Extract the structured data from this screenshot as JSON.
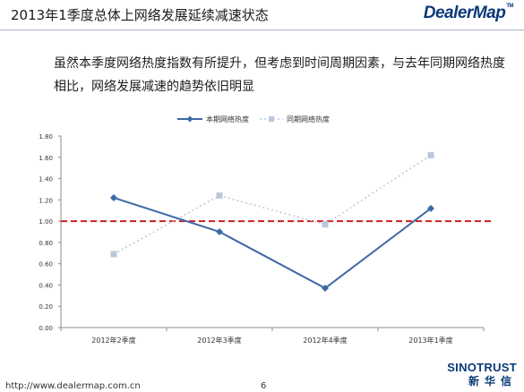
{
  "header": {
    "title": "2013年1季度总体上网络发展延续减速状态",
    "logo": "DealerMap",
    "logo_tm": "TM"
  },
  "body_text": "虽然本季度网络热度指数有所提升，但考虑到时间周期因素，与去年同期网络热度相比，网络发展减速的趋势依旧明显",
  "footer": {
    "url": "http://www.dealermap.com.cn",
    "page": "6",
    "brand_en": "SINOTRUST",
    "brand_cn": "新华信"
  },
  "colors": {
    "current": "#3d6aa6",
    "last_year": "#b9c8dc",
    "reference": "#cc1f1f",
    "axis": "#8c8c8c"
  },
  "chart_data": {
    "type": "line",
    "categories": [
      "2012年2季度",
      "2012年3季度",
      "2012年4季度",
      "2013年1季度"
    ],
    "series": [
      {
        "name": "本期网络热度",
        "values": [
          1.22,
          0.9,
          0.37,
          1.12
        ],
        "style": "solid",
        "marker": "diamond"
      },
      {
        "name": "同期网络热度",
        "values": [
          0.69,
          1.24,
          0.97,
          1.62
        ],
        "style": "dotted",
        "marker": "square"
      }
    ],
    "reference_line": 1.0,
    "ylim": [
      0,
      1.8
    ],
    "yticks": [
      "0.00",
      "0.20",
      "0.40",
      "0.60",
      "0.80",
      "1.00",
      "1.20",
      "1.40",
      "1.60",
      "1.80"
    ],
    "grid": false,
    "legend": "top-center",
    "title": "",
    "xlabel": "",
    "ylabel": ""
  }
}
